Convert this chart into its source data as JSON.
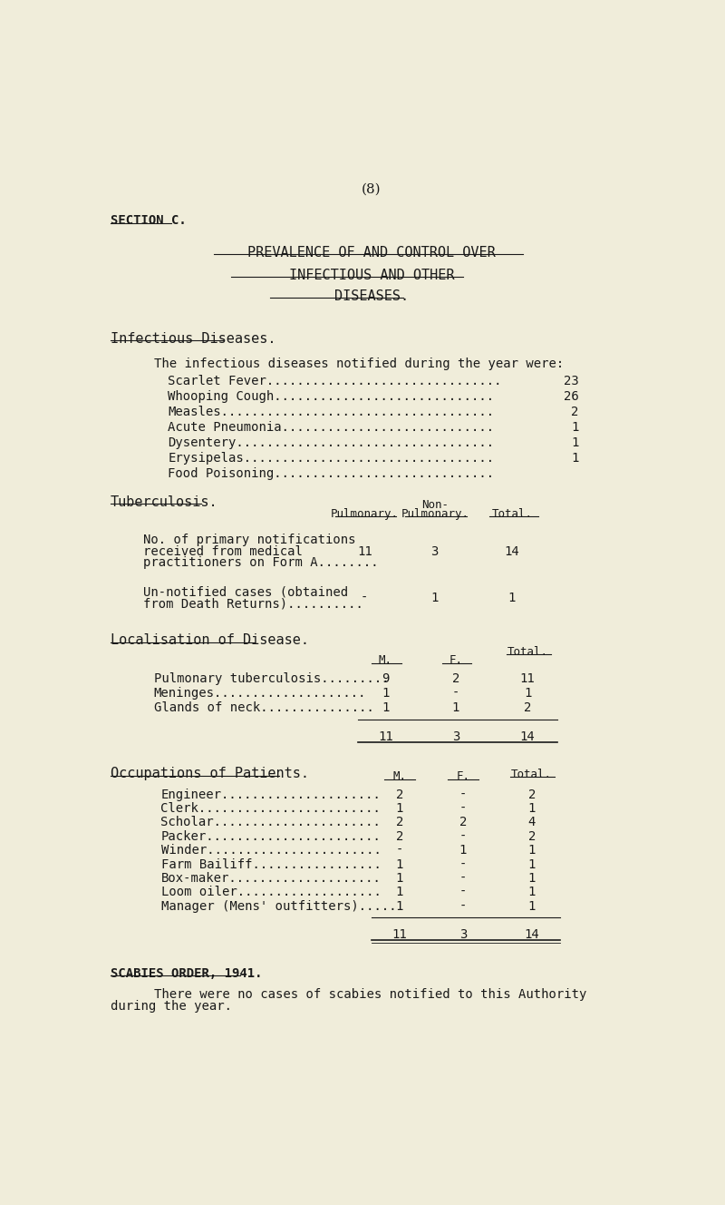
{
  "bg_color": "#f0edda",
  "text_color": "#1a1a1a",
  "page_number": "(8)",
  "section": "SECTION C.",
  "title1": "PREVALENCE OF AND CONTROL OVER",
  "title2": "INFECTIOUS AND OTHER",
  "title3": "DISEASES.",
  "section_heading1": "Infectious Diseases.",
  "intro_text": "The infectious diseases notified during the year were:",
  "diseases": [
    [
      "Scarlet Fever",
      "23"
    ],
    [
      "Whooping Cough",
      "26"
    ],
    [
      "Measles",
      "2"
    ],
    [
      "Acute Pneumonia",
      "1"
    ],
    [
      "Dysentery",
      "1"
    ],
    [
      "Erysipelas",
      "1"
    ],
    [
      "Food Poisoning",
      ""
    ]
  ],
  "tuberculosis_heading": "Tuberculosis.",
  "tb_rows": [
    {
      "label_lines": [
        "No. of primary notifications",
        "received from medical",
        "practitioners on Form A........"
      ],
      "pulmonary": "11",
      "non_pulmonary": "3",
      "total": "14"
    },
    {
      "label_lines": [
        "Un-notified cases (obtained",
        "from Death Returns).........."
      ],
      "pulmonary": "-",
      "non_pulmonary": "1",
      "total": "1"
    }
  ],
  "localisation_heading": "Localisation of Disease.",
  "loc_rows": [
    [
      "Pulmonary tuberculosis.........",
      "9",
      "2",
      "11"
    ],
    [
      "Meninges....................",
      "1",
      "-",
      "1"
    ],
    [
      "Glands of neck...............",
      "1",
      "1",
      "2"
    ]
  ],
  "loc_totals": [
    "11",
    "3",
    "14"
  ],
  "occupations_heading": "Occupations of Patients.",
  "occ_rows": [
    [
      "Engineer.....................",
      "2",
      "-",
      "2"
    ],
    [
      "Clerk........................",
      "1",
      "-",
      "1"
    ],
    [
      "Scholar......................",
      "2",
      "2",
      "4"
    ],
    [
      "Packer.......................",
      "2",
      "-",
      "2"
    ],
    [
      "Winder.......................",
      "-",
      "1",
      "1"
    ],
    [
      "Farm Bailiff.................",
      "1",
      "-",
      "1"
    ],
    [
      "Box-maker....................",
      "1",
      "-",
      "1"
    ],
    [
      "Loom oiler...................",
      "1",
      "-",
      "1"
    ],
    [
      "Manager (Mens' outfitters).....",
      "1",
      "-",
      "1"
    ]
  ],
  "occ_totals": [
    "11",
    "3",
    "14"
  ],
  "scabies_heading": "SCABIES ORDER, 1941.",
  "scabies_line1": "There were no cases of scabies notified to this Authority",
  "scabies_line2": "during the year."
}
